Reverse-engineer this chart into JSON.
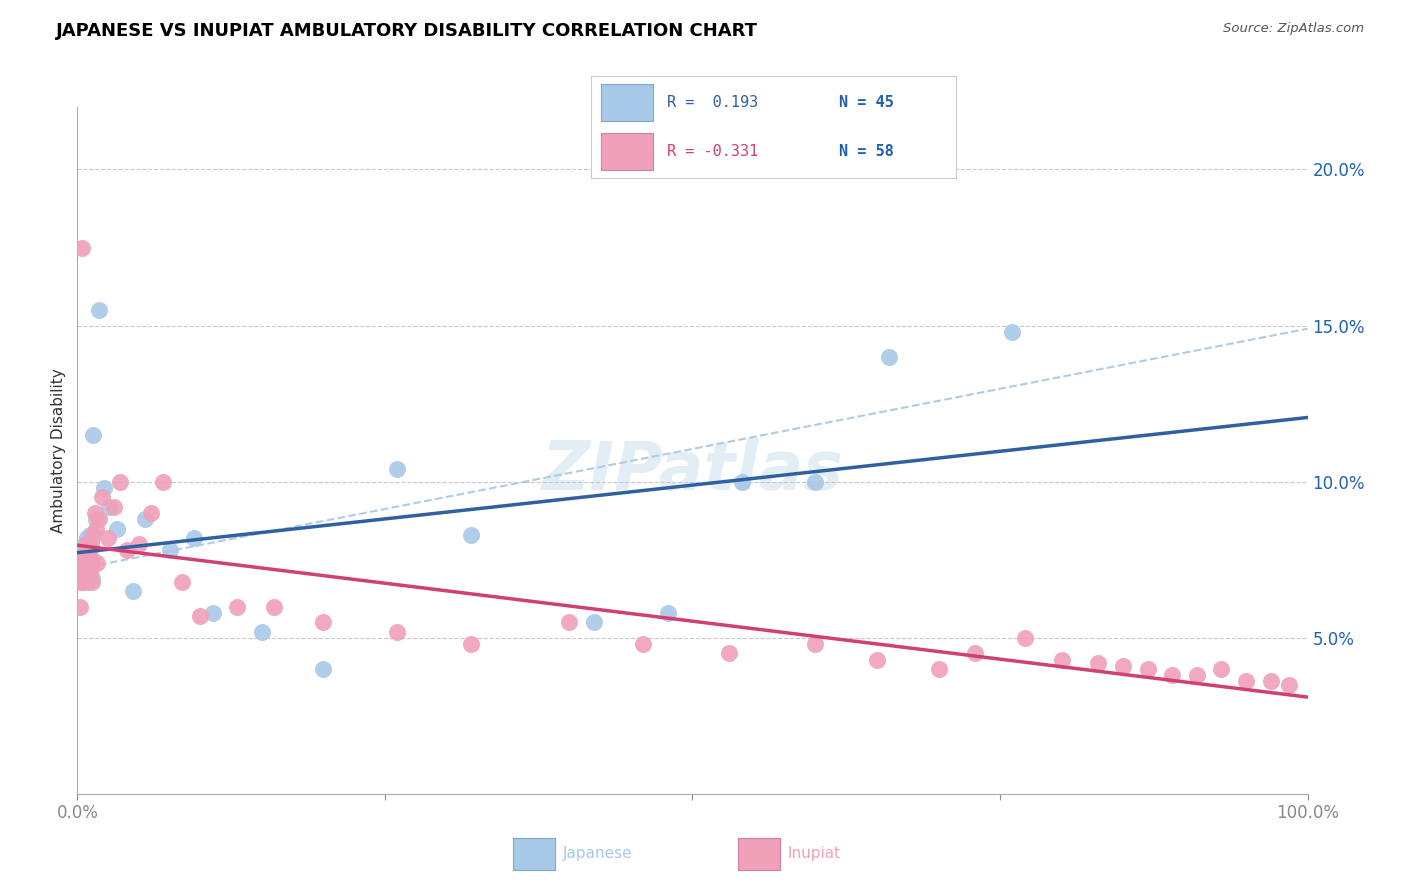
{
  "title": "JAPANESE VS INUPIAT AMBULATORY DISABILITY CORRELATION CHART",
  "source": "Source: ZipAtlas.com",
  "ylabel": "Ambulatory Disability",
  "xlim": [
    0.0,
    1.0
  ],
  "ylim": [
    0.0,
    0.22
  ],
  "xticks": [
    0.0,
    0.25,
    0.5,
    0.75,
    1.0
  ],
  "xtick_labels": [
    "0.0%",
    "",
    "",
    "",
    "100.0%"
  ],
  "ytick_positions": [
    0.05,
    0.1,
    0.15,
    0.2
  ],
  "ytick_labels": [
    "5.0%",
    "10.0%",
    "15.0%",
    "20.0%"
  ],
  "japanese_color": "#a8c8e8",
  "inupiat_color": "#f0a0b8",
  "japanese_line_color": "#3060a0",
  "inupiat_line_color": "#d04070",
  "dash_line_color": "#b0cce0",
  "grid_color": "#c8c8c8",
  "background_color": "#ffffff",
  "tick_label_color": "#2060b0",
  "japanese_x": [
    0.003,
    0.004,
    0.004,
    0.005,
    0.005,
    0.005,
    0.006,
    0.006,
    0.007,
    0.007,
    0.007,
    0.008,
    0.008,
    0.008,
    0.009,
    0.009,
    0.009,
    0.01,
    0.01,
    0.01,
    0.011,
    0.011,
    0.012,
    0.012,
    0.013,
    0.015,
    0.018,
    0.022,
    0.026,
    0.032,
    0.045,
    0.055,
    0.075,
    0.095,
    0.11,
    0.15,
    0.2,
    0.26,
    0.32,
    0.42,
    0.48,
    0.54,
    0.6,
    0.66,
    0.76
  ],
  "japanese_y": [
    0.072,
    0.075,
    0.077,
    0.074,
    0.078,
    0.073,
    0.076,
    0.08,
    0.07,
    0.073,
    0.079,
    0.072,
    0.075,
    0.082,
    0.068,
    0.075,
    0.08,
    0.074,
    0.078,
    0.083,
    0.073,
    0.081,
    0.069,
    0.075,
    0.115,
    0.088,
    0.155,
    0.098,
    0.092,
    0.085,
    0.065,
    0.088,
    0.078,
    0.082,
    0.058,
    0.052,
    0.04,
    0.104,
    0.083,
    0.055,
    0.058,
    0.1,
    0.1,
    0.14,
    0.148
  ],
  "inupiat_x": [
    0.002,
    0.003,
    0.004,
    0.004,
    0.005,
    0.005,
    0.006,
    0.006,
    0.007,
    0.007,
    0.007,
    0.008,
    0.008,
    0.009,
    0.009,
    0.01,
    0.01,
    0.011,
    0.011,
    0.012,
    0.013,
    0.014,
    0.015,
    0.016,
    0.018,
    0.02,
    0.025,
    0.03,
    0.035,
    0.04,
    0.05,
    0.06,
    0.07,
    0.085,
    0.1,
    0.13,
    0.16,
    0.2,
    0.26,
    0.32,
    0.4,
    0.46,
    0.53,
    0.6,
    0.65,
    0.7,
    0.73,
    0.77,
    0.8,
    0.83,
    0.85,
    0.87,
    0.89,
    0.91,
    0.93,
    0.95,
    0.97,
    0.985
  ],
  "inupiat_y": [
    0.06,
    0.068,
    0.072,
    0.175,
    0.068,
    0.074,
    0.07,
    0.076,
    0.072,
    0.075,
    0.08,
    0.07,
    0.078,
    0.073,
    0.079,
    0.071,
    0.076,
    0.074,
    0.08,
    0.068,
    0.083,
    0.09,
    0.085,
    0.074,
    0.088,
    0.095,
    0.082,
    0.092,
    0.1,
    0.078,
    0.08,
    0.09,
    0.1,
    0.068,
    0.057,
    0.06,
    0.06,
    0.055,
    0.052,
    0.048,
    0.055,
    0.048,
    0.045,
    0.048,
    0.043,
    0.04,
    0.045,
    0.05,
    0.043,
    0.042,
    0.041,
    0.04,
    0.038,
    0.038,
    0.04,
    0.036,
    0.036,
    0.035
  ],
  "legend_r1": "R =  0.193",
  "legend_n1": "N = 45",
  "legend_r2": "R = -0.331",
  "legend_n2": "N = 58",
  "watermark_text": "ZIPatlas",
  "bottom_legend_labels": [
    "Japanese",
    "Inupiat"
  ]
}
